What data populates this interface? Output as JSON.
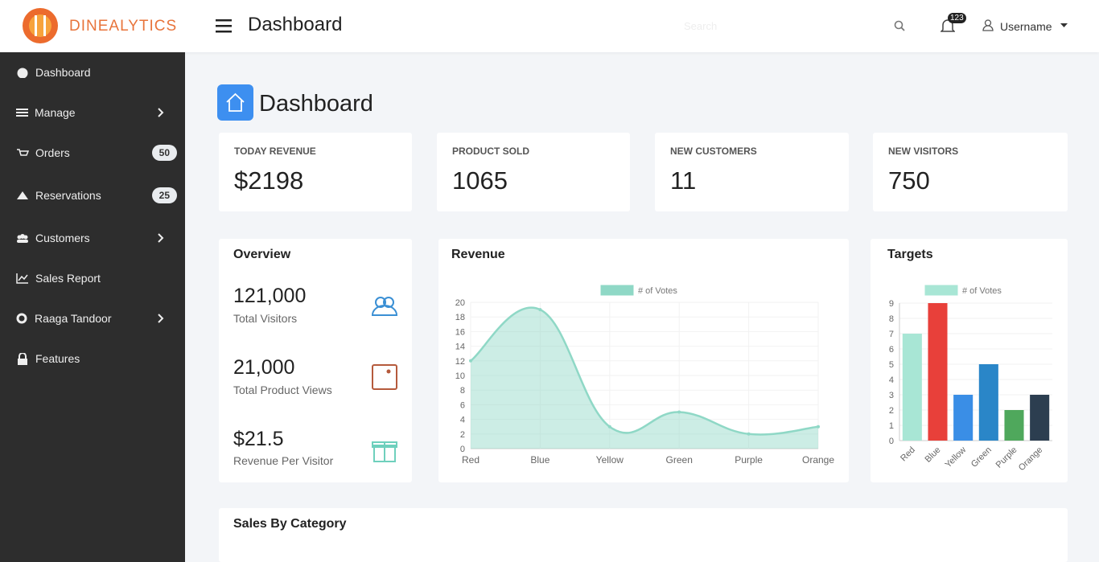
{
  "header": {
    "logo": "DINEALYTICS",
    "title": "Dashboard",
    "search_placeholder": "Search",
    "notification_count": "123",
    "username": "Username"
  },
  "sidebar": {
    "items": [
      {
        "label": "Dashboard"
      },
      {
        "label": "Manage"
      },
      {
        "label": "Orders",
        "badge": "50"
      },
      {
        "label": "Reservations",
        "badge": "25"
      },
      {
        "label": "Customers"
      },
      {
        "label": "Sales Report"
      },
      {
        "label": "Raaga Tandoor"
      },
      {
        "label": "Features"
      }
    ]
  },
  "page_title": "Dashboard",
  "stats": [
    {
      "label": "TODAY REVENUE",
      "value": "$2198"
    },
    {
      "label": "PRODUCT SOLD",
      "value": "1065"
    },
    {
      "label": "NEW CUSTOMERS",
      "value": "11"
    },
    {
      "label": "NEW VISITORS",
      "value": "750"
    }
  ],
  "overview": {
    "title": "Overview",
    "items": [
      {
        "value": "121,000",
        "label": "Total Visitors"
      },
      {
        "value": "21,000",
        "label": "Total Product Views"
      },
      {
        "value": "$21.5",
        "label": "Revenue Per Visitor"
      }
    ]
  },
  "chart_data": [
    {
      "type": "line",
      "title": "Revenue",
      "categories": [
        "Red",
        "Blue",
        "Yellow",
        "Green",
        "Purple",
        "Orange"
      ],
      "series": [
        {
          "name": "# of Votes",
          "color": "#8fd8c6",
          "values": [
            12,
            19,
            3,
            5,
            2,
            3
          ]
        }
      ],
      "ylim": [
        0,
        20
      ],
      "yticks": [
        0,
        2,
        4,
        6,
        8,
        10,
        12,
        14,
        16,
        18,
        20
      ],
      "grid": true,
      "fill": true
    },
    {
      "type": "bar",
      "title": "Targets",
      "categories": [
        "Red",
        "Blue",
        "Yellow",
        "Green",
        "Purple",
        "Orange"
      ],
      "series": [
        {
          "name": "# of Votes",
          "color": "#a8e6d5",
          "colors": [
            "#a8e6d5",
            "#e8403a",
            "#3a8ee6",
            "#2a86c8",
            "#4fa85c",
            "#2c3e50"
          ],
          "values": [
            7,
            9,
            3,
            5,
            2,
            3
          ]
        }
      ],
      "ylim": [
        0,
        9
      ],
      "yticks": [
        0,
        1,
        2,
        3,
        4,
        5,
        6,
        7,
        8,
        9
      ],
      "grid": true
    }
  ],
  "sections": {
    "sales_by_category": "Sales By Category"
  }
}
